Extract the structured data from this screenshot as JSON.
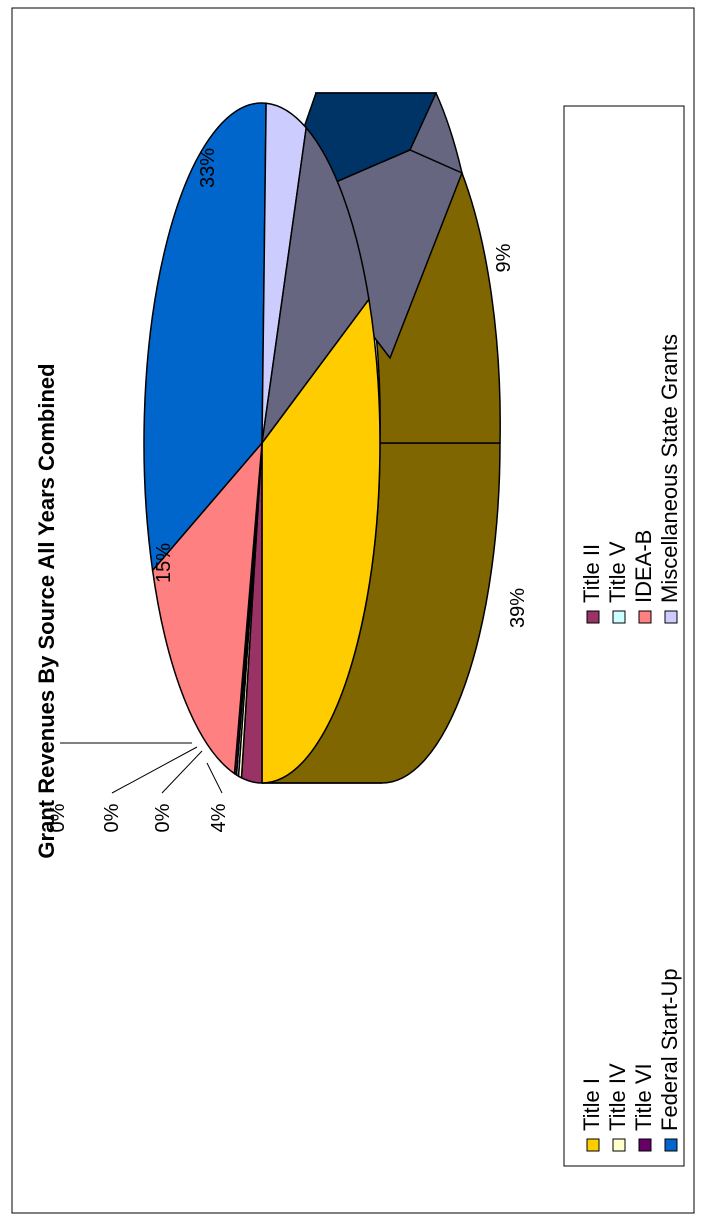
{
  "chart_data": {
    "type": "pie",
    "title": "Grant Revenues By Source All Years Combined",
    "slices": [
      {
        "label": "Title I",
        "value": 39,
        "pct_label": "39%",
        "color": "#FFCC00"
      },
      {
        "label": "Title II",
        "value": 4,
        "pct_label": "4%",
        "color": "#993366"
      },
      {
        "label": "Title IV",
        "value": 0.3,
        "pct_label": "0%",
        "color": "#FFFFCC"
      },
      {
        "label": "Title V",
        "value": 0.3,
        "pct_label": "0%",
        "color": "#CCFFFF"
      },
      {
        "label": "Title VI",
        "value": 0.3,
        "pct_label": "0%",
        "color": "#660066"
      },
      {
        "label": "IDEA-B",
        "value": 15,
        "pct_label": "15%",
        "color": "#FF8080"
      },
      {
        "label": "Federal Start-Up",
        "value": 33,
        "pct_label": "33%",
        "color": "#0066CC"
      },
      {
        "label": "Miscellaneous State Grants",
        "value": 5,
        "pct_label": "",
        "color": "#CCCCFF"
      },
      {
        "label": "",
        "value": 9,
        "pct_label": "9%",
        "color": "#666680"
      },
      {
        "label": "",
        "value": 0,
        "pct_label": "",
        "color": "#003366"
      }
    ],
    "legend": [
      {
        "label": "Title I",
        "color": "#FFCC00"
      },
      {
        "label": "Title II",
        "color": "#993366"
      },
      {
        "label": "Title IV",
        "color": "#FFFFCC"
      },
      {
        "label": "Title V",
        "color": "#CCFFFF"
      },
      {
        "label": "Title VI",
        "color": "#660066"
      },
      {
        "label": "IDEA-B",
        "color": "#FF8080"
      },
      {
        "label": "Federal Start-Up",
        "color": "#0066CC"
      },
      {
        "label": "Miscellaneous State Grants",
        "color": "#CCCCFF"
      }
    ],
    "legend_placement": "bottom",
    "orientation": "rotated-90-ccw"
  }
}
